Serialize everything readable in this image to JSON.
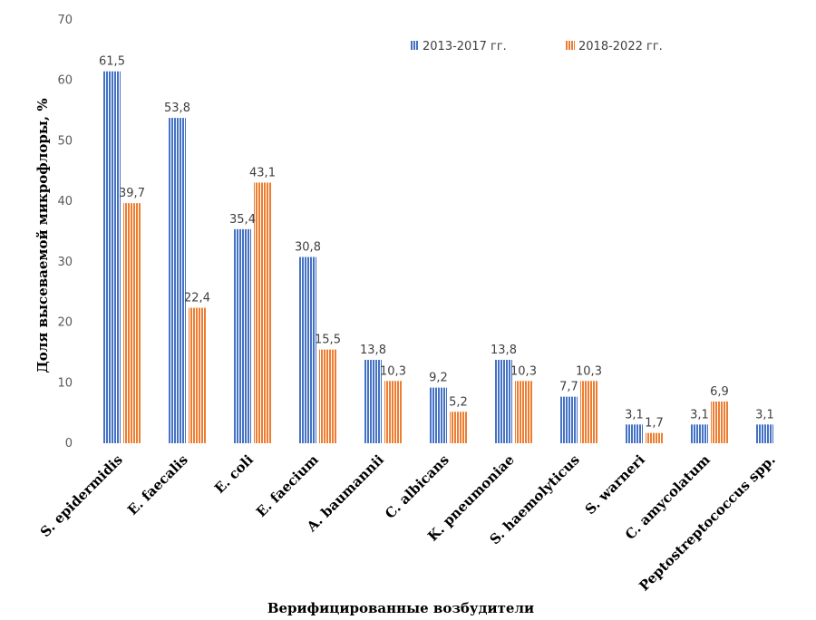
{
  "chart_data": {
    "type": "bar",
    "title": "",
    "xlabel": "Верифицированные возбудители",
    "ylabel": "Доля высеваемой микрофлоры, %",
    "ylim": [
      0,
      70
    ],
    "yticks": [
      0,
      10,
      20,
      30,
      40,
      50,
      60,
      70
    ],
    "grid": false,
    "legend_position": "top-right",
    "categories": [
      "S. epidermidis",
      "E. faecalis",
      "E. coli",
      "E. faecium",
      "A. baumannii",
      "C. albicans",
      "K. pneumoniae",
      "S. haemolyticus",
      "S. warneri",
      "C. amycolatum",
      "Peptostreptococcus spp."
    ],
    "series": [
      {
        "name": "2013-2017 гг.",
        "color": "#4472C4",
        "values": [
          61.5,
          53.8,
          35.4,
          30.8,
          13.8,
          9.2,
          13.8,
          7.7,
          3.1,
          3.1,
          3.1
        ],
        "labels": [
          "61,5",
          "53,8",
          "35,4",
          "30,8",
          "13,8",
          "9,2",
          "13,8",
          "7,7",
          "3,1",
          "3,1",
          "3,1"
        ]
      },
      {
        "name": "2018-2022 гг.",
        "color": "#ED7D31",
        "values": [
          39.7,
          22.4,
          43.1,
          15.5,
          10.3,
          5.2,
          10.3,
          10.3,
          1.7,
          6.9,
          null
        ],
        "labels": [
          "39,7",
          "22,4",
          "43,1",
          "15,5",
          "10,3",
          "5,2",
          "10,3",
          "10,3",
          "1,7",
          "6,9",
          ""
        ]
      }
    ]
  }
}
